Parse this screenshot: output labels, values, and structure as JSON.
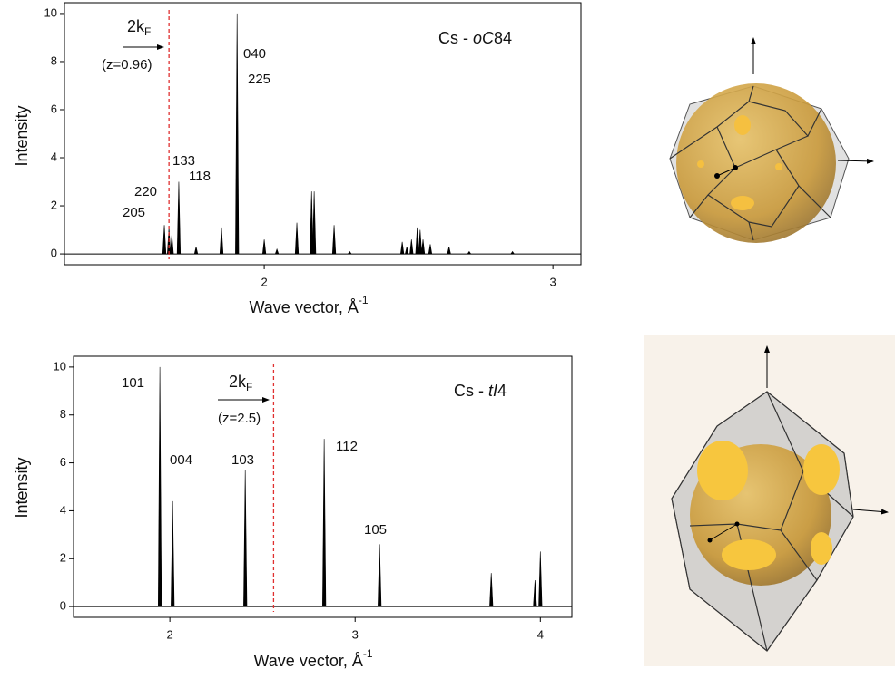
{
  "chart_data": [
    {
      "type": "stem",
      "color": "#000000",
      "title_parts": [
        "Cs - ",
        "oC",
        "84"
      ],
      "y_label": "Intensity",
      "x_label": "Wave vector, Å",
      "x_label_sup": "-1",
      "x": [
        1.654,
        1.67,
        1.68,
        1.704,
        1.764,
        1.852,
        1.906,
        2.0,
        2.044,
        2.113,
        2.164,
        2.173,
        2.242,
        2.296,
        2.478,
        2.494,
        2.51,
        2.53,
        2.54,
        2.55,
        2.575,
        2.64,
        2.71,
        2.86
      ],
      "values": [
        1.2,
        1.1,
        0.8,
        3.0,
        0.3,
        1.1,
        10,
        0.6,
        0.2,
        1.3,
        2.6,
        2.6,
        1.2,
        0.1,
        0.5,
        0.3,
        0.6,
        1.1,
        1.0,
        0.6,
        0.4,
        0.3,
        0.1,
        0.1
      ],
      "xlim": [
        1.308,
        3.097
      ],
      "ylim": [
        -0.45,
        10.45
      ],
      "xticks": [
        2,
        3
      ],
      "yticks": [
        0,
        2,
        4,
        6,
        8,
        10
      ],
      "marker_x": 1.67,
      "marker_color": "#e03030",
      "marker_label": "2k",
      "marker_label_sub": "F",
      "marker_note": "(z=0.96)",
      "peak_labels": [
        "040",
        "225",
        "133",
        "118",
        "220",
        "205"
      ]
    },
    {
      "type": "stem",
      "color": "#000000",
      "title_parts": [
        "Cs - ",
        "tI",
        "4"
      ],
      "y_label": "Intensity",
      "x_label": "Wave vector, Å",
      "x_label_sup": "-1",
      "x": [
        1.946,
        2.015,
        2.407,
        2.833,
        3.132,
        3.735,
        3.971,
        4.0
      ],
      "values": [
        10,
        4.4,
        5.7,
        7.0,
        2.6,
        1.4,
        1.1,
        2.3
      ],
      "xlim": [
        1.48,
        4.17
      ],
      "ylim": [
        -0.45,
        10.45
      ],
      "xticks": [
        2,
        3,
        4
      ],
      "yticks": [
        0,
        2,
        4,
        6,
        8,
        10
      ],
      "marker_x": 2.56,
      "marker_color": "#e03030",
      "marker_label": "2k",
      "marker_label_sub": "F",
      "marker_note": "(z=2.5)",
      "peak_labels": [
        "101",
        "004",
        "103",
        "112",
        "105"
      ]
    }
  ]
}
